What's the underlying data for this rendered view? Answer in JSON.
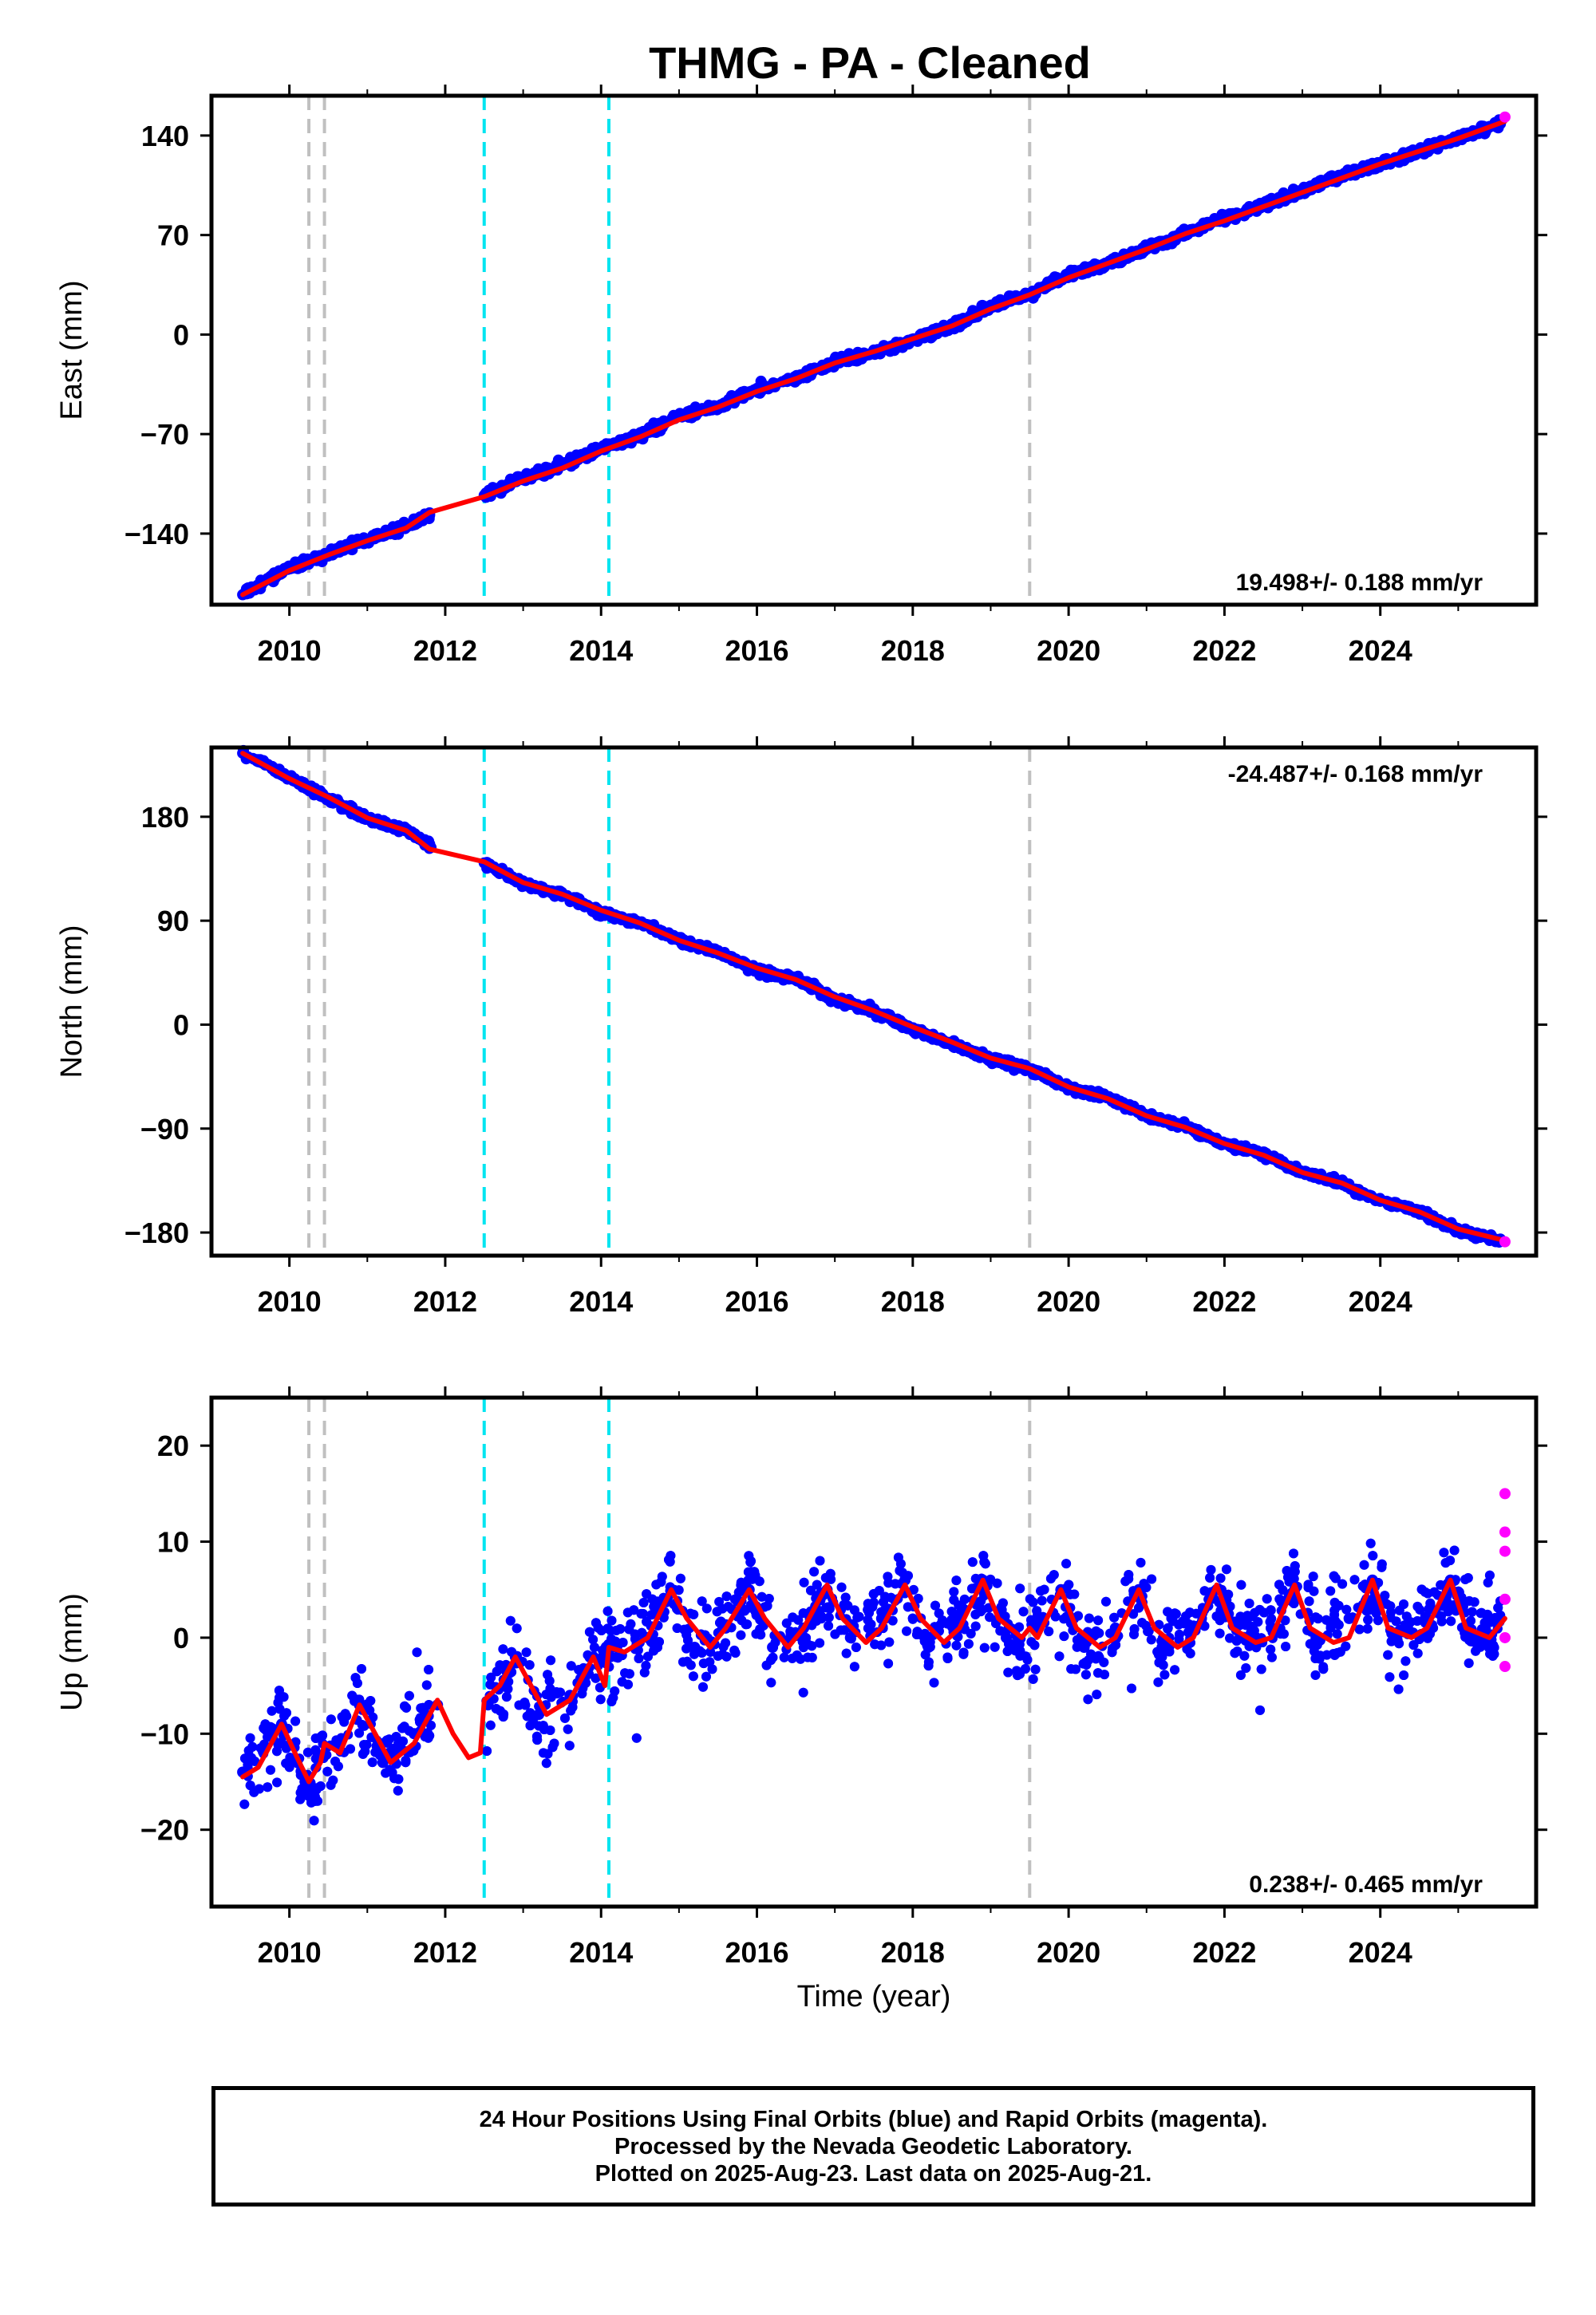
{
  "chart_data": {
    "title": "THMG  - PA - Cleaned",
    "type": "scatter",
    "xlabel": "Time (year)",
    "xlim": [
      2009.0,
      2026.0
    ],
    "xticks": [
      2010,
      2012,
      2014,
      2016,
      2018,
      2020,
      2022,
      2024
    ],
    "vlines": {
      "gray": [
        2010.25,
        2010.45,
        2019.5
      ],
      "cyan": [
        2012.5,
        2014.1
      ]
    },
    "panels": [
      {
        "id": "east",
        "ylabel": "East (mm)",
        "ylim": [
          -190,
          168
        ],
        "yticks": [
          140,
          70,
          0,
          -70,
          -140
        ],
        "velocity": "19.498+/- 0.188 mm/yr",
        "velocity_position": "bottom-right",
        "series": [
          {
            "kind": "final",
            "color": "#0000ff",
            "x": [
              2009.4,
              2010.0,
              2010.5,
              2011.0,
              2011.5,
              2011.8,
              2012.5,
              2013.0,
              2013.5,
              2014.0,
              2014.5,
              2015.0,
              2015.5,
              2016.0,
              2016.5,
              2017.0,
              2017.5,
              2018.0,
              2018.5,
              2019.0,
              2019.5,
              2020.0,
              2020.5,
              2021.0,
              2021.5,
              2022.0,
              2022.5,
              2023.0,
              2023.5,
              2024.0,
              2024.5,
              2025.0,
              2025.5
            ],
            "y": [
              -183,
              -164,
              -155,
              -144,
              -135,
              -127,
              -113,
              -101,
              -92,
              -80,
              -71,
              -57,
              -51,
              -38,
              -31,
              -19,
              -13,
              -4,
              6,
              20,
              28,
              42,
              50,
              60,
              71,
              82,
              91,
              101,
              112,
              120,
              129,
              138,
              148
            ]
          },
          {
            "kind": "rapid",
            "color": "#ff00ff",
            "x": [
              2025.6
            ],
            "y": [
              153
            ]
          },
          {
            "kind": "model",
            "color": "#ff0000",
            "x": [
              2009.4,
              2010.0,
              2010.5,
              2011.0,
              2011.5,
              2011.8,
              2012.5,
              2013.0,
              2013.5,
              2014.0,
              2014.5,
              2015.0,
              2015.5,
              2016.0,
              2016.5,
              2017.0,
              2017.5,
              2018.0,
              2018.5,
              2019.0,
              2019.5,
              2020.0,
              2020.5,
              2021.0,
              2021.5,
              2022.0,
              2022.5,
              2023.0,
              2023.5,
              2024.0,
              2024.5,
              2025.0,
              2025.6
            ],
            "y": [
              -183,
              -166,
              -155,
              -145,
              -136,
              -125,
              -114,
              -103,
              -94,
              -82,
              -72,
              -60,
              -51,
              -40,
              -31,
              -20,
              -12,
              -3,
              6,
              18,
              28,
              40,
              50,
              60,
              71,
              80,
              90,
              100,
              110,
              120,
              129,
              138,
              150
            ]
          }
        ]
      },
      {
        "id": "north",
        "ylabel": "North (mm)",
        "ylim": [
          -200,
          240
        ],
        "yticks": [
          180,
          90,
          0,
          -90,
          -180
        ],
        "velocity": "-24.487+/- 0.168 mm/yr",
        "velocity_position": "top-right",
        "series": [
          {
            "kind": "final",
            "color": "#0000ff",
            "x": [
              2009.4,
              2010.0,
              2010.5,
              2011.0,
              2011.5,
              2011.8,
              2012.5,
              2013.0,
              2013.5,
              2014.0,
              2014.5,
              2015.0,
              2015.5,
              2016.0,
              2016.5,
              2017.0,
              2017.5,
              2018.0,
              2018.5,
              2019.0,
              2019.5,
              2020.0,
              2020.5,
              2021.0,
              2021.5,
              2022.0,
              2022.5,
              2023.0,
              2023.5,
              2024.0,
              2024.5,
              2025.0,
              2025.5
            ],
            "y": [
              235,
              214,
              196,
              178,
              168,
              155,
              140,
              122,
              113,
              97,
              88,
              73,
              63,
              47,
              40,
              22,
              12,
              -4,
              -16,
              -30,
              -38,
              -55,
              -63,
              -79,
              -88,
              -103,
              -112,
              -128,
              -137,
              -152,
              -162,
              -178,
              -187
            ]
          },
          {
            "kind": "rapid",
            "color": "#ff00ff",
            "x": [
              2025.6
            ],
            "y": [
              -188
            ]
          },
          {
            "kind": "model",
            "color": "#ff0000",
            "x": [
              2009.4,
              2010.0,
              2010.5,
              2011.0,
              2011.5,
              2011.8,
              2012.5,
              2013.0,
              2013.5,
              2014.0,
              2014.5,
              2015.0,
              2015.5,
              2016.0,
              2016.5,
              2017.0,
              2017.5,
              2018.0,
              2018.5,
              2019.0,
              2019.5,
              2020.0,
              2020.5,
              2021.0,
              2021.5,
              2022.0,
              2022.5,
              2023.0,
              2023.5,
              2024.0,
              2024.5,
              2025.0,
              2025.6
            ],
            "y": [
              235,
              213,
              197,
              179,
              168,
              152,
              141,
              123,
              113,
              99,
              88,
              73,
              62,
              49,
              39,
              24,
              12,
              -2,
              -15,
              -29,
              -38,
              -54,
              -64,
              -79,
              -89,
              -103,
              -113,
              -128,
              -137,
              -152,
              -162,
              -177,
              -187
            ]
          }
        ]
      },
      {
        "id": "up",
        "ylabel": "Up (mm)",
        "ylim": [
          -28,
          25
        ],
        "yticks": [
          20,
          10,
          0,
          -10,
          -20
        ],
        "velocity": "0.238+/- 0.465 mm/yr",
        "velocity_position": "bottom-right",
        "series": [
          {
            "kind": "final",
            "color": "#0000ff",
            "x": [
              2009.4,
              2009.9,
              2010.2,
              2010.6,
              2010.9,
              2011.2,
              2011.6,
              2011.9,
              2012.55,
              2012.9,
              2013.2,
              2013.6,
              2013.9,
              2014.2,
              2014.6,
              2014.9,
              2015.2,
              2015.6,
              2015.9,
              2016.2,
              2016.6,
              2016.9,
              2017.2,
              2017.6,
              2017.9,
              2018.2,
              2018.6,
              2018.9,
              2019.2,
              2019.6,
              2019.9,
              2020.2,
              2020.6,
              2020.9,
              2021.2,
              2021.6,
              2021.9,
              2022.2,
              2022.6,
              2022.9,
              2023.2,
              2023.6,
              2023.9,
              2024.2,
              2024.6,
              2024.9,
              2025.2,
              2025.5
            ],
            "y": [
              -14,
              -9,
              -15,
              -11,
              -7,
              -13,
              -10,
              -7,
              -7,
              -2,
              -8,
              -6,
              -2,
              -1,
              0,
              5,
              -1,
              1,
              5,
              -1,
              1,
              5,
              0,
              2,
              6,
              -1,
              1,
              6,
              0,
              1,
              5,
              -1,
              1,
              5,
              -1,
              1,
              5,
              0,
              1,
              5,
              0,
              2,
              6,
              0,
              2,
              6,
              0,
              2
            ]
          },
          {
            "kind": "rapid",
            "color": "#ff00ff",
            "x": [
              2025.6,
              2025.6,
              2025.6,
              2025.6,
              2025.6,
              2025.6
            ],
            "y": [
              15,
              11,
              9,
              4,
              0,
              -3
            ]
          },
          {
            "kind": "model",
            "color": "#ff0000",
            "x": [
              2009.4,
              2009.6,
              2009.9,
              2010.1,
              2010.25,
              2010.4,
              2010.45,
              2010.65,
              2010.9,
              2011.1,
              2011.3,
              2011.6,
              2011.9,
              2012.1,
              2012.3,
              2012.45,
              2012.5,
              2012.7,
              2012.9,
              2013.1,
              2013.3,
              2013.6,
              2013.9,
              2014.05,
              2014.1,
              2014.3,
              2014.6,
              2014.9,
              2015.1,
              2015.4,
              2015.6,
              2015.9,
              2016.1,
              2016.4,
              2016.6,
              2016.9,
              2017.1,
              2017.4,
              2017.6,
              2017.9,
              2018.1,
              2018.4,
              2018.6,
              2018.9,
              2019.1,
              2019.4,
              2019.5,
              2019.6,
              2019.9,
              2020.1,
              2020.4,
              2020.6,
              2020.9,
              2021.1,
              2021.4,
              2021.6,
              2021.9,
              2022.1,
              2022.4,
              2022.6,
              2022.9,
              2023.1,
              2023.4,
              2023.6,
              2023.9,
              2024.1,
              2024.4,
              2024.6,
              2024.9,
              2025.1,
              2025.4,
              2025.6
            ],
            "y": [
              -14.5,
              -13.5,
              -9,
              -12.5,
              -15,
              -13,
              -11,
              -12,
              -7,
              -10,
              -13,
              -11,
              -6.5,
              -10,
              -12.5,
              -12,
              -6.5,
              -5,
              -2,
              -5,
              -8,
              -6.5,
              -2,
              -5,
              -1,
              -1.5,
              0,
              5,
              2,
              -1,
              1,
              5,
              2,
              -1,
              1,
              5.5,
              2,
              -0.5,
              1,
              5.5,
              2,
              -0.5,
              1,
              6,
              2,
              0,
              1,
              0,
              5,
              1,
              -1,
              0,
              5,
              1,
              -1,
              0,
              5.5,
              1,
              -0.5,
              0,
              5.5,
              1,
              -0.5,
              0,
              6,
              1,
              0,
              1,
              6,
              1,
              0,
              2
            ]
          }
        ]
      }
    ]
  },
  "footer": {
    "line1": "24 Hour Positions Using Final Orbits (blue) and Rapid Orbits (magenta).",
    "line2": "Processed by the Nevada Geodetic Laboratory.",
    "line3": "Plotted on 2025-Aug-23. Last data on 2025-Aug-21."
  }
}
